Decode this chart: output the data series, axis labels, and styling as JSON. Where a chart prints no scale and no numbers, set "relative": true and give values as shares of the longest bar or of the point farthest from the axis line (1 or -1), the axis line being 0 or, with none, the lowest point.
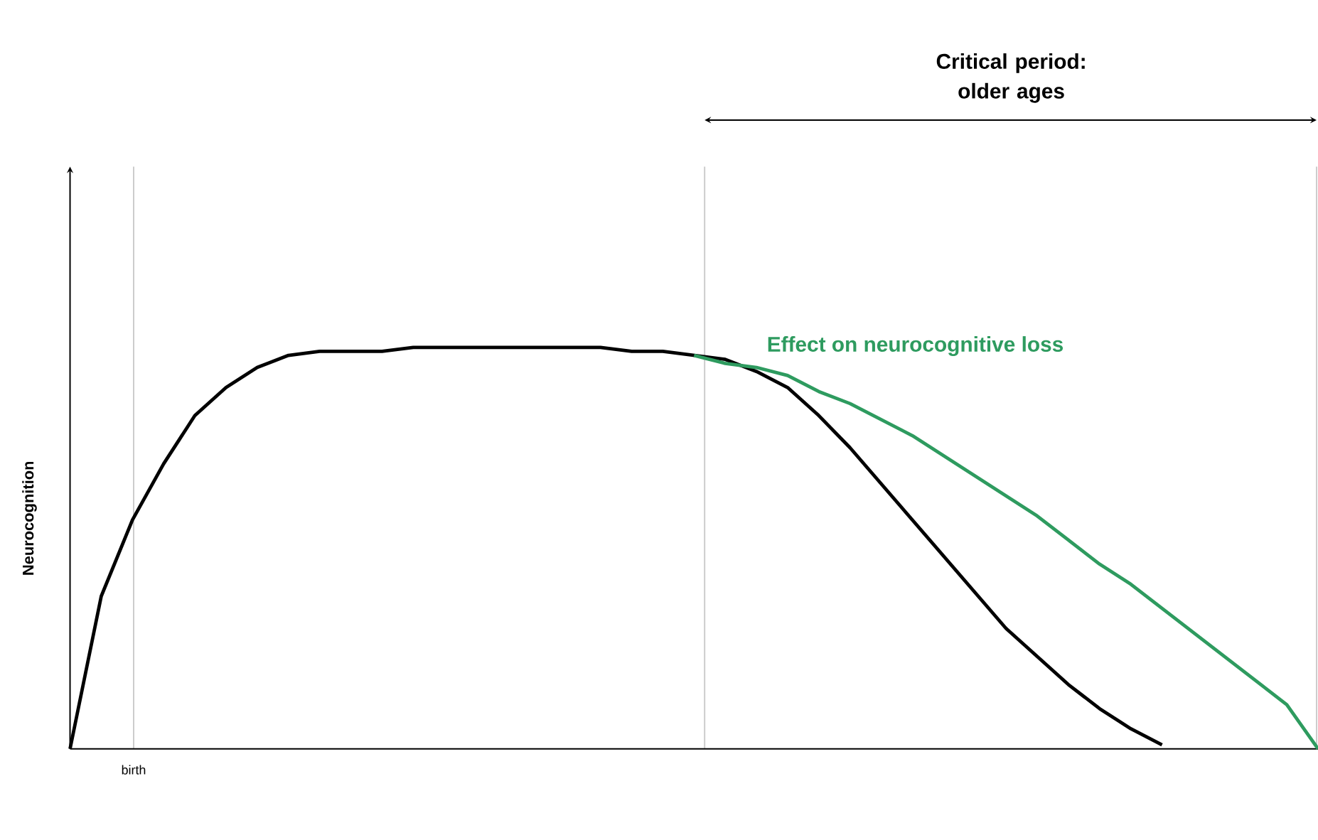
{
  "chart_data": {
    "type": "line",
    "relative": true,
    "ylabel": "Neurocognition",
    "marker": "none",
    "legend": false,
    "categories": [
      null,
      null,
      null,
      null,
      null,
      null,
      null,
      null,
      null,
      null,
      null,
      null,
      null,
      null,
      null,
      null,
      null,
      null,
      null,
      null,
      null,
      null,
      null,
      null,
      null,
      null,
      null,
      null,
      null,
      null,
      null,
      null,
      null,
      null,
      null,
      null,
      null,
      null,
      null,
      null,
      null
    ],
    "series": [
      {
        "color": "#000000",
        "values": [
          0,
          0.38,
          0.57,
          0.71,
          0.83,
          0.9,
          0.95,
          0.98,
          0.99,
          0.99,
          0.99,
          1.0,
          1.0,
          1.0,
          1.0,
          1.0,
          1.0,
          1.0,
          0.99,
          0.99,
          0.98,
          0.97,
          0.94,
          0.9,
          0.83,
          0.75,
          0.66,
          0.57,
          0.48,
          0.39,
          0.3,
          0.23,
          0.16,
          0.1,
          0.05,
          0.01,
          null,
          null,
          null,
          null,
          null
        ]
      },
      {
        "name": "Effect on neurocognitive loss",
        "color": "#2e9b5f",
        "values": [
          null,
          null,
          null,
          null,
          null,
          null,
          null,
          null,
          null,
          null,
          null,
          null,
          null,
          null,
          null,
          null,
          null,
          null,
          null,
          null,
          0.98,
          0.96,
          0.95,
          0.93,
          0.89,
          0.86,
          0.82,
          0.78,
          0.73,
          0.68,
          0.63,
          0.58,
          0.52,
          0.46,
          0.41,
          0.35,
          0.29,
          0.23,
          0.17,
          0.11,
          0
        ]
      }
    ],
    "annotations": [
      "birth",
      "Critical period:\nolder ages"
    ]
  }
}
